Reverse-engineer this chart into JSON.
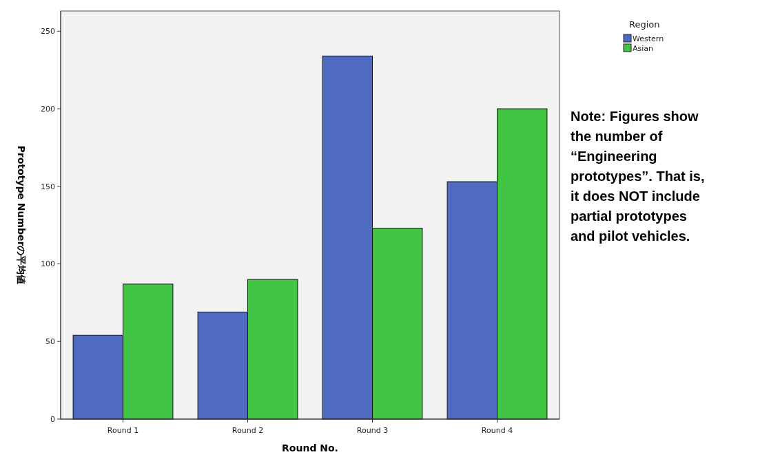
{
  "chart_data": {
    "type": "bar",
    "xlabel": "Round No.",
    "ylabel": "Prototype Numberの平均値",
    "legend_title": "Region",
    "categories": [
      "Round 1",
      "Round 2",
      "Round 3",
      "Round 4"
    ],
    "series": [
      {
        "name": "Western",
        "color": "#4f6bc1",
        "values": [
          54,
          69,
          234,
          153
        ]
      },
      {
        "name": "Asian",
        "color": "#42c445",
        "values": [
          87,
          90,
          123,
          200
        ]
      }
    ],
    "ylim": [
      0,
      263
    ],
    "yticks": [
      0,
      50,
      100,
      150,
      200,
      250
    ],
    "grid": false,
    "legend": "top right",
    "annotations": [
      "Note: Figures show the number of “Engineering prototypes”. That is, it does NOT include partial prototypes and pilot vehicles."
    ]
  }
}
